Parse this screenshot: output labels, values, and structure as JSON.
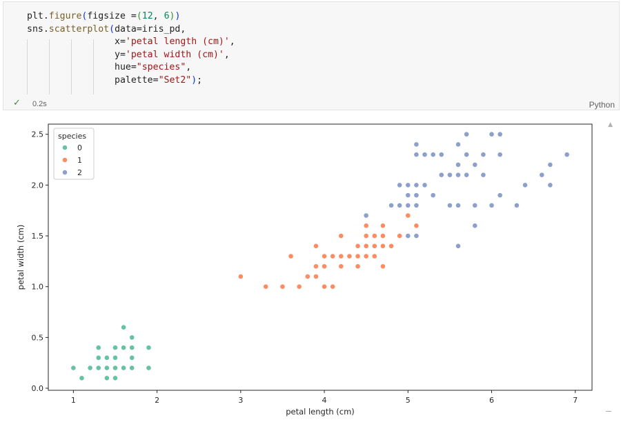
{
  "cell": {
    "code_lines": [
      [
        {
          "t": "plt.",
          "c": ""
        },
        {
          "t": "figure",
          "c": "fn"
        },
        {
          "t": "(",
          "c": "b1"
        },
        {
          "t": "figsize =",
          "c": ""
        },
        {
          "t": "(",
          "c": "b2"
        },
        {
          "t": "12",
          "c": "num"
        },
        {
          "t": ", ",
          "c": ""
        },
        {
          "t": "6",
          "c": "num"
        },
        {
          "t": ")",
          "c": "b2"
        },
        {
          "t": ")",
          "c": "b1"
        }
      ],
      [
        {
          "t": "sns.",
          "c": ""
        },
        {
          "t": "scatterplot",
          "c": "fn"
        },
        {
          "t": "(",
          "c": "b1"
        },
        {
          "t": "data=iris_pd,",
          "c": ""
        }
      ],
      [
        {
          "t": "                x=",
          "c": ""
        },
        {
          "t": "'petal length (cm)'",
          "c": "str"
        },
        {
          "t": ",",
          "c": ""
        }
      ],
      [
        {
          "t": "                y=",
          "c": ""
        },
        {
          "t": "'petal width (cm)'",
          "c": "str"
        },
        {
          "t": ",",
          "c": ""
        }
      ],
      [
        {
          "t": "                hue=",
          "c": ""
        },
        {
          "t": "\"species\"",
          "c": "str"
        },
        {
          "t": ",",
          "c": ""
        }
      ],
      [
        {
          "t": "                palette=",
          "c": ""
        },
        {
          "t": "\"Set2\"",
          "c": "str"
        },
        {
          "t": ")",
          "c": "b1"
        },
        {
          "t": ";",
          "c": ""
        }
      ]
    ],
    "status_icon": "check-icon",
    "status_check": "✓",
    "exec_time": "0.2s",
    "language": "Python"
  },
  "colors": {
    "species_0": "#66c2a5",
    "species_1": "#fc8d62",
    "species_2": "#8da0cb"
  },
  "chart_data": {
    "type": "scatter",
    "xlabel": "petal length (cm)",
    "ylabel": "petal width (cm)",
    "xlim": [
      0.7,
      7.2
    ],
    "ylim": [
      -0.02,
      2.6
    ],
    "xticks": [
      1,
      2,
      3,
      4,
      5,
      6,
      7
    ],
    "yticks": [
      0.0,
      0.5,
      1.0,
      1.5,
      2.0,
      2.5
    ],
    "ytick_labels": [
      "0.0",
      "0.5",
      "1.0",
      "1.5",
      "2.0",
      "2.5"
    ],
    "grid": false,
    "legend": {
      "title": "species",
      "placement": "top-left"
    },
    "series": [
      {
        "name": "0",
        "color": "#66c2a5",
        "points": [
          [
            1.0,
            0.2
          ],
          [
            1.1,
            0.1
          ],
          [
            1.2,
            0.2
          ],
          [
            1.3,
            0.2
          ],
          [
            1.3,
            0.3
          ],
          [
            1.3,
            0.4
          ],
          [
            1.4,
            0.1
          ],
          [
            1.4,
            0.2
          ],
          [
            1.4,
            0.3
          ],
          [
            1.5,
            0.1
          ],
          [
            1.5,
            0.2
          ],
          [
            1.5,
            0.3
          ],
          [
            1.5,
            0.4
          ],
          [
            1.6,
            0.2
          ],
          [
            1.6,
            0.4
          ],
          [
            1.6,
            0.6
          ],
          [
            1.7,
            0.2
          ],
          [
            1.7,
            0.3
          ],
          [
            1.7,
            0.4
          ],
          [
            1.7,
            0.5
          ],
          [
            1.9,
            0.2
          ],
          [
            1.9,
            0.4
          ]
        ]
      },
      {
        "name": "1",
        "color": "#fc8d62",
        "points": [
          [
            3.0,
            1.1
          ],
          [
            3.3,
            1.0
          ],
          [
            3.5,
            1.0
          ],
          [
            3.6,
            1.3
          ],
          [
            3.7,
            1.0
          ],
          [
            3.8,
            1.1
          ],
          [
            3.9,
            1.1
          ],
          [
            3.9,
            1.2
          ],
          [
            3.9,
            1.4
          ],
          [
            4.0,
            1.0
          ],
          [
            4.0,
            1.2
          ],
          [
            4.0,
            1.3
          ],
          [
            4.1,
            1.0
          ],
          [
            4.1,
            1.3
          ],
          [
            4.2,
            1.2
          ],
          [
            4.2,
            1.3
          ],
          [
            4.2,
            1.5
          ],
          [
            4.3,
            1.3
          ],
          [
            4.4,
            1.2
          ],
          [
            4.4,
            1.3
          ],
          [
            4.4,
            1.4
          ],
          [
            4.5,
            1.3
          ],
          [
            4.5,
            1.5
          ],
          [
            4.5,
            1.6
          ],
          [
            4.6,
            1.3
          ],
          [
            4.6,
            1.4
          ],
          [
            4.6,
            1.5
          ],
          [
            4.7,
            1.2
          ],
          [
            4.7,
            1.4
          ],
          [
            4.7,
            1.5
          ],
          [
            4.7,
            1.6
          ],
          [
            4.8,
            1.4
          ],
          [
            4.9,
            1.5
          ],
          [
            5.0,
            1.7
          ],
          [
            5.1,
            1.6
          ],
          [
            4.5,
            1.4
          ],
          [
            4.6,
            1.4
          ],
          [
            4.0,
            1.2
          ],
          [
            4.3,
            1.3
          ],
          [
            4.4,
            1.4
          ]
        ]
      },
      {
        "name": "2",
        "color": "#8da0cb",
        "points": [
          [
            4.5,
            1.7
          ],
          [
            4.8,
            1.8
          ],
          [
            4.9,
            1.8
          ],
          [
            4.9,
            2.0
          ],
          [
            5.0,
            1.5
          ],
          [
            5.0,
            1.8
          ],
          [
            5.0,
            1.9
          ],
          [
            5.0,
            2.0
          ],
          [
            5.1,
            1.5
          ],
          [
            5.1,
            1.8
          ],
          [
            5.1,
            1.9
          ],
          [
            5.1,
            2.0
          ],
          [
            5.1,
            2.3
          ],
          [
            5.1,
            2.4
          ],
          [
            5.2,
            2.0
          ],
          [
            5.2,
            2.3
          ],
          [
            5.3,
            1.9
          ],
          [
            5.3,
            2.3
          ],
          [
            5.4,
            2.1
          ],
          [
            5.4,
            2.3
          ],
          [
            5.5,
            1.8
          ],
          [
            5.5,
            2.1
          ],
          [
            5.6,
            1.4
          ],
          [
            5.6,
            1.8
          ],
          [
            5.6,
            2.1
          ],
          [
            5.6,
            2.2
          ],
          [
            5.6,
            2.4
          ],
          [
            5.7,
            2.1
          ],
          [
            5.7,
            2.3
          ],
          [
            5.7,
            2.5
          ],
          [
            5.8,
            1.6
          ],
          [
            5.8,
            1.8
          ],
          [
            5.8,
            2.2
          ],
          [
            5.9,
            2.1
          ],
          [
            5.9,
            2.3
          ],
          [
            6.0,
            1.8
          ],
          [
            6.0,
            2.5
          ],
          [
            6.1,
            1.9
          ],
          [
            6.1,
            2.3
          ],
          [
            6.1,
            2.5
          ],
          [
            6.3,
            1.8
          ],
          [
            6.4,
            2.0
          ],
          [
            6.6,
            2.1
          ],
          [
            6.7,
            2.0
          ],
          [
            6.7,
            2.2
          ],
          [
            6.9,
            2.3
          ]
        ]
      }
    ]
  }
}
